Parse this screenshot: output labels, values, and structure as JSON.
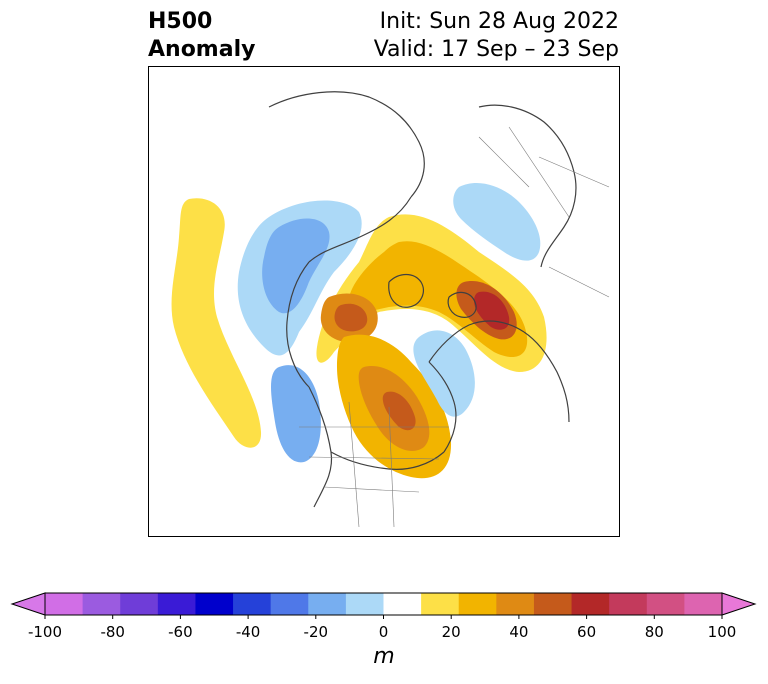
{
  "title": {
    "left_line1": "H500",
    "left_line2": "Anomaly",
    "right_line1": "Init: Sun 28 Aug 2022",
    "right_line2": "Valid: 17 Sep – 23 Sep"
  },
  "colorbar": {
    "unit": "m",
    "ticks": [
      "-100",
      "-80",
      "-60",
      "-40",
      "-20",
      "0",
      "20",
      "40",
      "60",
      "80",
      "100"
    ],
    "colors": [
      "#d16ee6",
      "#9b5be0",
      "#6f3dd8",
      "#3a1bd6",
      "#0000cc",
      "#2541d9",
      "#4f78e8",
      "#77aef0",
      "#acd9f7",
      "#ffffff",
      "#fde047",
      "#f2b400",
      "#df8a14",
      "#c55a1b",
      "#b32828",
      "#c33a5c",
      "#d25083",
      "#dd64b0"
    ],
    "under_color": "#d778e8",
    "over_color": "#e878d8"
  },
  "map": {
    "features": [
      {
        "name": "positive-anomaly-pacific-band",
        "color": "#fde047"
      },
      {
        "name": "negative-anomaly-alaska",
        "color": "#acd9f7"
      },
      {
        "name": "negative-anomaly-alaska-core",
        "color": "#77aef0"
      },
      {
        "name": "positive-anomaly-arctic-siberia",
        "color": "#fde047"
      },
      {
        "name": "positive-anomaly-arctic-siberia-core",
        "color": "#f2b400"
      },
      {
        "name": "positive-anomaly-siberia-max",
        "color": "#b32828"
      },
      {
        "name": "positive-anomaly-canada",
        "color": "#df8a14"
      },
      {
        "name": "negative-anomaly-greenland",
        "color": "#acd9f7"
      },
      {
        "name": "negative-anomaly-europe-north",
        "color": "#acd9f7"
      }
    ]
  }
}
